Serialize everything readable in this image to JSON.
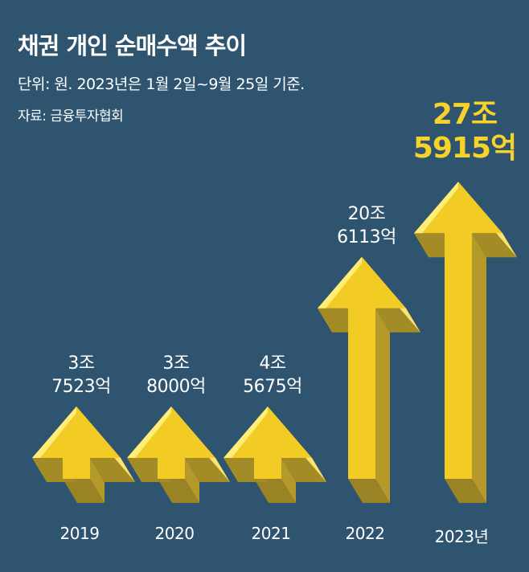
{
  "chart_data": {
    "type": "bar",
    "title": "채권 개인 순매수액 추이",
    "subtitle": "단위: 원. 2023년은 1월 2일~9월 25일 기준.",
    "source": "자료: 금융투자협회",
    "unit": "억원",
    "categories": [
      "2019",
      "2020",
      "2021",
      "2022",
      "2023년"
    ],
    "values": [
      37523,
      38000,
      45675,
      206113,
      275915
    ],
    "value_labels": [
      [
        "3조",
        "7523억"
      ],
      [
        "3조",
        "8000억"
      ],
      [
        "4조",
        "5675억"
      ],
      [
        "20조",
        "6113억"
      ],
      [
        "27조",
        "5915억"
      ]
    ],
    "highlight_index": 4
  },
  "colors": {
    "background": "#2e5470",
    "arrow_front": "#f2cc25",
    "arrow_top": "#fbe272",
    "arrow_side": "#b59a2a",
    "highlight_text": "#f6d22a"
  }
}
